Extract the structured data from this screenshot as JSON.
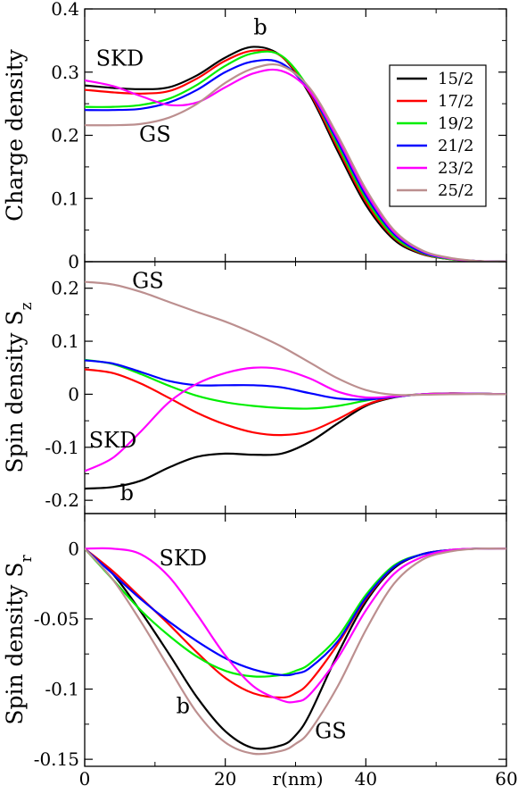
{
  "chart_data": [
    {
      "type": "line",
      "ylabel": "Charge density",
      "ylim": [
        0,
        0.4
      ],
      "yticks": [
        {
          "v": 0.0,
          "label": "0"
        },
        {
          "v": 0.1,
          "label": "0.1"
        },
        {
          "v": 0.2,
          "label": "0.2"
        },
        {
          "v": 0.3,
          "label": "0.3"
        },
        {
          "v": 0.4,
          "label": "0.4"
        }
      ],
      "legend": {
        "placement": "right",
        "entries": [
          "15/2",
          "17/2",
          "19/2",
          "21/2",
          "23/2",
          "25/2"
        ]
      },
      "annotations": [
        {
          "text": "SKD",
          "x": 5,
          "y": 0.31
        },
        {
          "text": "GS",
          "x": 10,
          "y": 0.19
        },
        {
          "text": "b",
          "x": 25,
          "y": 0.36
        }
      ],
      "series": [
        {
          "color": "#000000",
          "x": [
            0,
            4,
            8,
            12,
            16,
            20,
            24,
            28,
            32,
            36,
            40,
            44,
            48,
            52,
            56,
            60
          ],
          "y": [
            0.279,
            0.275,
            0.273,
            0.276,
            0.295,
            0.323,
            0.34,
            0.325,
            0.265,
            0.175,
            0.09,
            0.035,
            0.012,
            0.004,
            0.001,
            0.0
          ]
        },
        {
          "color": "#ff0000",
          "x": [
            0,
            4,
            8,
            12,
            16,
            20,
            24,
            28,
            32,
            36,
            40,
            44,
            48,
            52,
            56,
            60
          ],
          "y": [
            0.272,
            0.268,
            0.266,
            0.27,
            0.29,
            0.318,
            0.334,
            0.325,
            0.268,
            0.18,
            0.095,
            0.038,
            0.013,
            0.004,
            0.001,
            0.0
          ]
        },
        {
          "color": "#00ee00",
          "x": [
            0,
            4,
            8,
            12,
            16,
            20,
            24,
            28,
            32,
            36,
            40,
            44,
            48,
            52,
            56,
            60
          ],
          "y": [
            0.245,
            0.245,
            0.248,
            0.258,
            0.28,
            0.31,
            0.33,
            0.326,
            0.272,
            0.185,
            0.1,
            0.04,
            0.014,
            0.004,
            0.001,
            0.0
          ]
        },
        {
          "color": "#0000ff",
          "x": [
            0,
            4,
            8,
            12,
            16,
            20,
            24,
            28,
            32,
            36,
            40,
            44,
            48,
            52,
            56,
            60
          ],
          "y": [
            0.24,
            0.24,
            0.242,
            0.252,
            0.272,
            0.3,
            0.317,
            0.314,
            0.27,
            0.19,
            0.105,
            0.044,
            0.015,
            0.005,
            0.001,
            0.0
          ]
        },
        {
          "color": "#ff00ff",
          "x": [
            0,
            4,
            8,
            12,
            16,
            20,
            24,
            28,
            32,
            36,
            40,
            44,
            48,
            52,
            56,
            60
          ],
          "y": [
            0.287,
            0.278,
            0.262,
            0.248,
            0.252,
            0.276,
            0.298,
            0.302,
            0.27,
            0.195,
            0.11,
            0.047,
            0.017,
            0.005,
            0.001,
            0.0
          ]
        },
        {
          "color": "#bc8f8f",
          "x": [
            0,
            4,
            8,
            12,
            16,
            20,
            24,
            28,
            32,
            36,
            40,
            44,
            48,
            52,
            56,
            60
          ],
          "y": [
            0.216,
            0.216,
            0.218,
            0.228,
            0.25,
            0.283,
            0.306,
            0.31,
            0.275,
            0.2,
            0.115,
            0.05,
            0.018,
            0.006,
            0.001,
            0.0
          ]
        }
      ]
    },
    {
      "type": "line",
      "ylabel": "Spin density S",
      "ylabel_sub": "z",
      "ylim": [
        -0.225,
        0.25
      ],
      "yticks": [
        {
          "v": -0.2,
          "label": "-0.2"
        },
        {
          "v": -0.1,
          "label": "-0.1"
        },
        {
          "v": 0.0,
          "label": "0"
        },
        {
          "v": 0.1,
          "label": "0.1"
        },
        {
          "v": 0.2,
          "label": "0.2"
        }
      ],
      "annotations": [
        {
          "text": "GS",
          "x": 9,
          "y": 0.2
        },
        {
          "text": "SKD",
          "x": 4,
          "y": -0.1
        },
        {
          "text": "b",
          "x": 6,
          "y": -0.2
        }
      ],
      "series": [
        {
          "color": "#000000",
          "x": [
            0,
            4,
            8,
            12,
            16,
            20,
            24,
            28,
            32,
            36,
            40,
            44,
            48,
            52,
            56,
            60
          ],
          "y": [
            -0.178,
            -0.175,
            -0.163,
            -0.138,
            -0.118,
            -0.112,
            -0.114,
            -0.112,
            -0.09,
            -0.055,
            -0.022,
            -0.006,
            0.0,
            0.0015,
            0.001,
            0.0
          ]
        },
        {
          "color": "#ff0000",
          "x": [
            0,
            4,
            8,
            12,
            16,
            20,
            24,
            28,
            32,
            36,
            40,
            44,
            48,
            52,
            56,
            60
          ],
          "y": [
            0.047,
            0.04,
            0.02,
            -0.007,
            -0.035,
            -0.057,
            -0.072,
            -0.077,
            -0.07,
            -0.047,
            -0.02,
            -0.005,
            0.0,
            0.0015,
            0.001,
            0.0
          ]
        },
        {
          "color": "#00ee00",
          "x": [
            0,
            4,
            8,
            12,
            16,
            20,
            24,
            28,
            32,
            36,
            40,
            44,
            48,
            52,
            56,
            60
          ],
          "y": [
            0.065,
            0.057,
            0.038,
            0.016,
            -0.003,
            -0.015,
            -0.022,
            -0.026,
            -0.027,
            -0.022,
            -0.012,
            -0.004,
            0.0,
            0.001,
            0.001,
            0.0
          ]
        },
        {
          "color": "#0000ff",
          "x": [
            0,
            4,
            8,
            12,
            16,
            20,
            24,
            28,
            32,
            36,
            40,
            44,
            48,
            52,
            56,
            60
          ],
          "y": [
            0.064,
            0.058,
            0.042,
            0.025,
            0.017,
            0.017,
            0.017,
            0.013,
            0.002,
            -0.008,
            -0.01,
            -0.005,
            0.0,
            0.001,
            0.001,
            0.0
          ]
        },
        {
          "color": "#ff00ff",
          "x": [
            0,
            4,
            8,
            12,
            16,
            20,
            24,
            28,
            32,
            36,
            40,
            44,
            48,
            52,
            56,
            60
          ],
          "y": [
            -0.145,
            -0.12,
            -0.07,
            -0.015,
            0.02,
            0.04,
            0.05,
            0.047,
            0.03,
            0.005,
            -0.006,
            -0.004,
            0.0,
            0.001,
            0.001,
            0.0
          ]
        },
        {
          "color": "#bc8f8f",
          "x": [
            0,
            4,
            8,
            12,
            16,
            20,
            24,
            28,
            32,
            36,
            40,
            44,
            48,
            52,
            56,
            60
          ],
          "y": [
            0.212,
            0.207,
            0.193,
            0.174,
            0.155,
            0.137,
            0.115,
            0.09,
            0.06,
            0.03,
            0.008,
            -0.001,
            -0.001,
            0.0,
            0.0005,
            0.0
          ]
        }
      ]
    },
    {
      "type": "line",
      "ylabel": "Spin density S",
      "ylabel_sub": "r",
      "xlabel": "r(nm)",
      "xlim": [
        0,
        60
      ],
      "xticks": [
        {
          "v": 0,
          "label": "0"
        },
        {
          "v": 20,
          "label": "20"
        },
        {
          "v": 40,
          "label": "40"
        },
        {
          "v": 60,
          "label": "60"
        }
      ],
      "ylim": [
        -0.155,
        0.025
      ],
      "yticks": [
        {
          "v": -0.15,
          "label": "-0.15"
        },
        {
          "v": -0.1,
          "label": "-0.1"
        },
        {
          "v": -0.05,
          "label": "-0.05"
        },
        {
          "v": 0.0,
          "label": "0"
        }
      ],
      "annotations": [
        {
          "text": "SKD",
          "x": 14,
          "y": -0.012
        },
        {
          "text": "b",
          "x": 14,
          "y": -0.117
        },
        {
          "text": "GS",
          "x": 35,
          "y": -0.135
        }
      ],
      "series": [
        {
          "color": "#000000",
          "x": [
            0,
            4,
            8,
            12,
            16,
            20,
            24,
            28,
            30,
            32,
            36,
            40,
            44,
            48,
            52,
            56,
            60
          ],
          "y": [
            0.0,
            -0.018,
            -0.045,
            -0.075,
            -0.106,
            -0.13,
            -0.142,
            -0.14,
            -0.133,
            -0.118,
            -0.075,
            -0.038,
            -0.014,
            -0.004,
            -0.001,
            0.0,
            0.0
          ]
        },
        {
          "color": "#ff0000",
          "x": [
            0,
            4,
            8,
            12,
            16,
            20,
            24,
            28,
            30,
            32,
            36,
            40,
            44,
            48,
            52,
            56,
            60
          ],
          "y": [
            0.0,
            -0.016,
            -0.035,
            -0.054,
            -0.074,
            -0.092,
            -0.103,
            -0.106,
            -0.103,
            -0.095,
            -0.068,
            -0.036,
            -0.013,
            -0.004,
            -0.001,
            0.0,
            0.0
          ]
        },
        {
          "color": "#00ee00",
          "x": [
            0,
            4,
            8,
            12,
            16,
            20,
            24,
            28,
            30,
            32,
            36,
            40,
            44,
            48,
            52,
            56,
            60
          ],
          "y": [
            0.0,
            -0.022,
            -0.044,
            -0.062,
            -0.077,
            -0.087,
            -0.091,
            -0.09,
            -0.087,
            -0.082,
            -0.063,
            -0.033,
            -0.012,
            -0.004,
            -0.001,
            0.0,
            0.0
          ]
        },
        {
          "color": "#0000ff",
          "x": [
            0,
            4,
            8,
            12,
            16,
            20,
            24,
            28,
            30,
            32,
            36,
            40,
            44,
            48,
            52,
            56,
            60
          ],
          "y": [
            0.0,
            -0.018,
            -0.036,
            -0.052,
            -0.066,
            -0.078,
            -0.086,
            -0.09,
            -0.089,
            -0.085,
            -0.066,
            -0.035,
            -0.013,
            -0.004,
            -0.001,
            0.0,
            0.0
          ]
        },
        {
          "color": "#ff00ff",
          "x": [
            0,
            4,
            8,
            12,
            16,
            20,
            24,
            28,
            30,
            32,
            36,
            40,
            44,
            48,
            52,
            56,
            60
          ],
          "y": [
            0.0,
            0.0,
            -0.004,
            -0.02,
            -0.047,
            -0.076,
            -0.098,
            -0.108,
            -0.109,
            -0.104,
            -0.078,
            -0.044,
            -0.018,
            -0.006,
            -0.001,
            0.0,
            0.0
          ]
        },
        {
          "color": "#bc8f8f",
          "x": [
            0,
            4,
            8,
            12,
            16,
            20,
            24,
            28,
            30,
            32,
            36,
            40,
            44,
            48,
            52,
            56,
            60
          ],
          "y": [
            0.0,
            -0.022,
            -0.052,
            -0.085,
            -0.117,
            -0.138,
            -0.146,
            -0.144,
            -0.139,
            -0.13,
            -0.098,
            -0.058,
            -0.025,
            -0.008,
            -0.002,
            0.0,
            0.0
          ]
        }
      ]
    }
  ]
}
